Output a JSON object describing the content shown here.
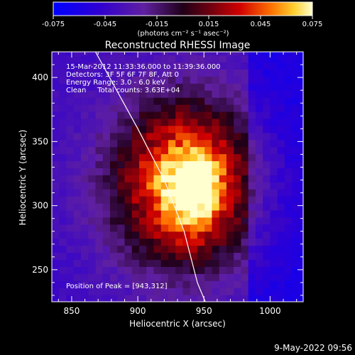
{
  "chart_data": {
    "type": "heatmap",
    "title": "Reconstructed RHESSI Image",
    "xlabel": "Heliocentric X (arcsec)",
    "ylabel": "Heliocentric Y (arcsec)",
    "xlim": [
      835,
      1025
    ],
    "ylim": [
      225,
      420
    ],
    "x_ticks": [
      850,
      900,
      950,
      1000
    ],
    "y_ticks": [
      250,
      300,
      350,
      400
    ],
    "x_tick_labels": [
      "850",
      "900",
      "950",
      "1000"
    ],
    "y_tick_labels": [
      "250",
      "300",
      "350",
      "400"
    ],
    "colorbar": {
      "range": [
        -0.075,
        0.075
      ],
      "ticks": [
        "-0.075",
        "-0.045",
        "-0.015",
        "0.015",
        "0.045",
        "0.075"
      ],
      "unit_label": "(photons cm⁻² s⁻¹ asec⁻²)"
    },
    "annotations": [
      "15-Mar-2012 11:33:36.000 to 11:39:36.000",
      "Detectors: 3F 5F 6F 7F 8F, Att 0",
      "Energy Range: 3.0 - 6.0 keV",
      "Clean     Total counts: 3.63E+04"
    ],
    "peak_label": "Position of Peak = [943,312]",
    "peak": [
      943,
      312
    ],
    "source": {
      "center": [
        935,
        318
      ],
      "sigma_x": 38,
      "sigma_y": 45,
      "peak_value": 0.075,
      "min_value": -0.04
    },
    "grid": false,
    "limb_curve": [
      [
        868,
        420
      ],
      [
        900,
        360
      ],
      [
        920,
        320
      ],
      [
        935,
        280
      ],
      [
        945,
        240
      ],
      [
        951,
        225
      ]
    ]
  },
  "footer": {
    "date": "9-May-2022 09:56"
  },
  "colors": {
    "background": "#000000",
    "foreground": "#ffffff"
  }
}
